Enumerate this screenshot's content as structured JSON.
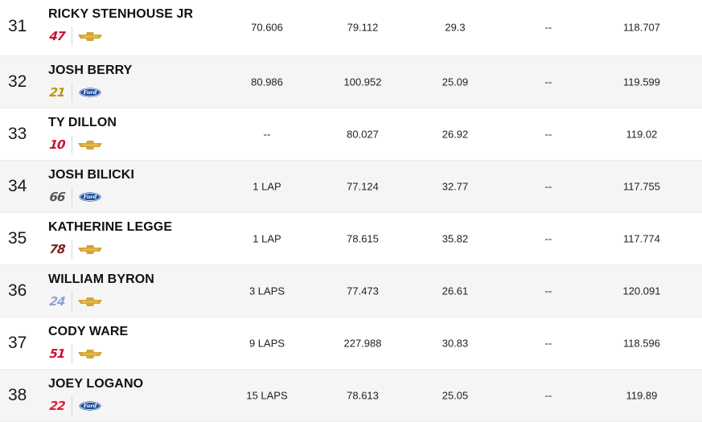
{
  "rows": [
    {
      "position": "31",
      "driver": "RICKY STENHOUSE JR",
      "car_number": "47",
      "car_color": "#c8102e",
      "manufacturer": "chevrolet",
      "behind": "70.606",
      "best_speed": "79.112",
      "best_time": "29.3",
      "laps_led": "--",
      "fastest": "118.707"
    },
    {
      "position": "32",
      "driver": "JOSH BERRY",
      "car_number": "21",
      "car_color": "#b8960c",
      "manufacturer": "ford",
      "behind": "80.986",
      "best_speed": "100.952",
      "best_time": "25.09",
      "laps_led": "--",
      "fastest": "119.599"
    },
    {
      "position": "33",
      "driver": "TY DILLON",
      "car_number": "10",
      "car_color": "#c8102e",
      "manufacturer": "chevrolet",
      "behind": "--",
      "best_speed": "80.027",
      "best_time": "26.92",
      "laps_led": "--",
      "fastest": "119.02"
    },
    {
      "position": "34",
      "driver": "JOSH BILICKI",
      "car_number": "66",
      "car_color": "#555555",
      "manufacturer": "ford",
      "behind": "1 LAP",
      "best_speed": "77.124",
      "best_time": "32.77",
      "laps_led": "--",
      "fastest": "117.755"
    },
    {
      "position": "35",
      "driver": "KATHERINE LEGGE",
      "car_number": "78",
      "car_color": "#7a1f1f",
      "manufacturer": "chevrolet",
      "behind": "1 LAP",
      "best_speed": "78.615",
      "best_time": "35.82",
      "laps_led": "--",
      "fastest": "117.774"
    },
    {
      "position": "36",
      "driver": "WILLIAM BYRON",
      "car_number": "24",
      "car_color": "#8fa3d8",
      "manufacturer": "chevrolet",
      "behind": "3 LAPS",
      "best_speed": "77.473",
      "best_time": "26.61",
      "laps_led": "--",
      "fastest": "120.091"
    },
    {
      "position": "37",
      "driver": "CODY WARE",
      "car_number": "51",
      "car_color": "#c8102e",
      "manufacturer": "chevrolet",
      "behind": "9 LAPS",
      "best_speed": "227.988",
      "best_time": "30.83",
      "laps_led": "--",
      "fastest": "118.596"
    },
    {
      "position": "38",
      "driver": "JOEY LOGANO",
      "car_number": "22",
      "car_color": "#e01e37",
      "manufacturer": "ford",
      "behind": "15 LAPS",
      "best_speed": "78.613",
      "best_time": "25.05",
      "laps_led": "--",
      "fastest": "119.89"
    }
  ],
  "colors": {
    "chevrolet": "#d4a531",
    "ford": "#1f4e9c",
    "row_alt": "#f5f5f5"
  }
}
